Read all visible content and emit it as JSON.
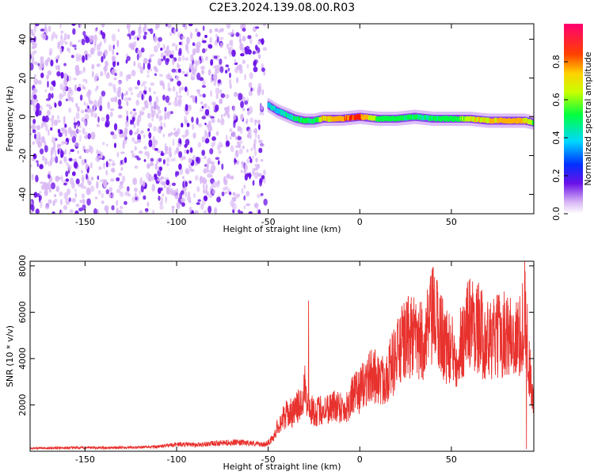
{
  "title": "C2E3.2024.139.08.00.R03",
  "colors": {
    "noise_light": "#d9b8f5",
    "noise_dark": "#6a10e8",
    "snr_line": "#e8322e"
  },
  "chart_data": [
    {
      "type": "heatmap",
      "xlabel": "Height of straight line (km)",
      "ylabel": "Frequency (Hz)",
      "xlim": [
        -180,
        95
      ],
      "ylim": [
        -50,
        48
      ],
      "xticks": [
        "-150",
        "-100",
        "-50",
        "0",
        "50"
      ],
      "yticks": [
        "40",
        "20",
        "0",
        "-20",
        "-40"
      ],
      "colorbar": {
        "label": "Normalized spectral amplitude",
        "range": [
          0,
          1
        ],
        "ticks": [
          "0.0",
          "0.2",
          "0.4",
          "0.6",
          "0.8"
        ]
      },
      "noise_region_x": [
        -180,
        -52
      ],
      "signal_track": {
        "x": [
          -50,
          -45,
          -40,
          -35,
          -30,
          -25,
          -20,
          -10,
          0,
          10,
          20,
          30,
          40,
          50,
          60,
          70,
          80,
          90,
          95
        ],
        "frequency": [
          6,
          3,
          1,
          -1,
          -2,
          -2,
          -1,
          -1,
          0,
          -1,
          -1,
          0,
          -1,
          -1,
          -1,
          -2,
          -2,
          -2,
          -3
        ],
        "amplitude": [
          0.45,
          0.42,
          0.48,
          0.5,
          0.55,
          0.5,
          0.8,
          0.85,
          0.95,
          0.6,
          0.55,
          0.5,
          0.5,
          0.55,
          0.75,
          0.8,
          0.85,
          0.8,
          0.6
        ]
      }
    },
    {
      "type": "line",
      "xlabel": "Height of straight line (km)",
      "ylabel": "SNR (10 * v/v)",
      "xlim": [
        -180,
        95
      ],
      "ylim": [
        0,
        8200
      ],
      "xticks": [
        "-150",
        "-100",
        "-50",
        "0",
        "50"
      ],
      "yticks": [
        "8000",
        "6000",
        "4000",
        "2000"
      ],
      "x": [
        -180,
        -160,
        -140,
        -120,
        -110,
        -100,
        -90,
        -80,
        -70,
        -60,
        -52,
        -48,
        -44,
        -40,
        -36,
        -32,
        -30,
        -28,
        -24,
        -20,
        -16,
        -12,
        -8,
        -4,
        0,
        4,
        8,
        12,
        16,
        20,
        24,
        28,
        32,
        36,
        40,
        44,
        48,
        52,
        56,
        60,
        64,
        68,
        72,
        76,
        80,
        84,
        88,
        90,
        92,
        95
      ],
      "values": [
        130,
        150,
        150,
        170,
        200,
        300,
        280,
        330,
        380,
        360,
        280,
        500,
        1200,
        1600,
        1700,
        2100,
        3000,
        1800,
        1700,
        1800,
        1900,
        2000,
        1800,
        2400,
        2600,
        3100,
        3300,
        3000,
        3500,
        4100,
        4700,
        5000,
        4600,
        4900,
        5800,
        5200,
        4400,
        4200,
        4800,
        5700,
        5400,
        4900,
        4700,
        5000,
        5100,
        4800,
        4900,
        6400,
        4000,
        2000
      ],
      "spikes": [
        {
          "x": -28,
          "value": 6500
        },
        {
          "x": 90,
          "value": 8200
        },
        {
          "x": 91,
          "value": 100
        }
      ]
    }
  ]
}
